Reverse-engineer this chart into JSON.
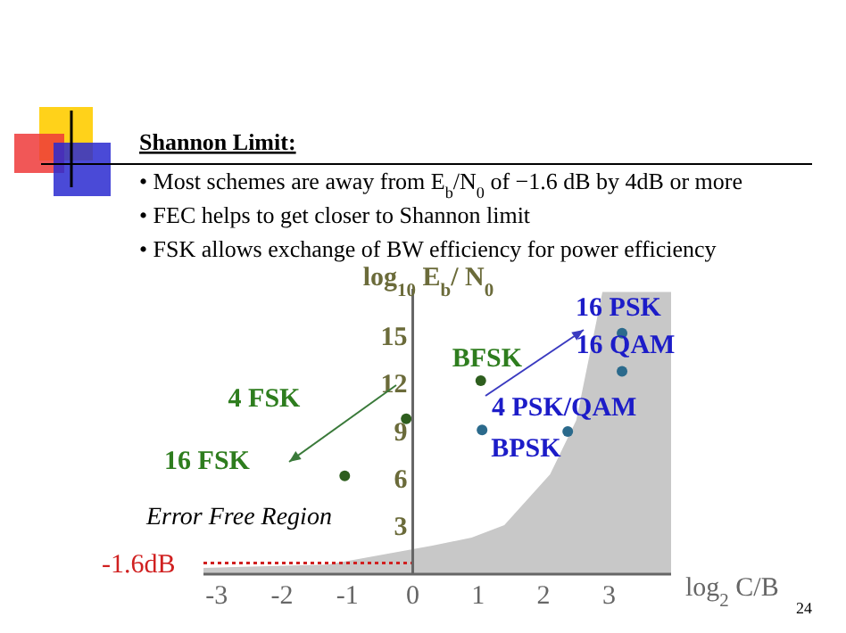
{
  "chart_data": {
    "type": "scatter",
    "title": "Shannon Limit:",
    "xlabel": "log$_{2}$ C/B",
    "ylabel": "log$_{10}$  E$_{b}$/ N$_{0}$",
    "xlim": [
      -3.2,
      3.95
    ],
    "ylim": [
      0,
      18
    ],
    "xticks": [
      -3,
      -2,
      -1,
      0,
      1,
      2,
      3
    ],
    "yticks": [
      3,
      6,
      9,
      12,
      15
    ],
    "series": [
      {
        "type": "area",
        "color": "#c8c8c8",
        "x": [
          -3.2,
          -1.3,
          0.3,
          0.9,
          1.4,
          2.1,
          2.5,
          2.9,
          3.95
        ],
        "values": [
          0.4,
          0.6,
          1.8,
          2.3,
          3.1,
          6.3,
          9.7,
          17.8,
          17.8
        ]
      },
      {
        "color": "#2e5e1e",
        "marker": "circle",
        "x": [
          1.04,
          -0.1,
          -1.04
        ],
        "values": [
          12.2,
          9.8,
          6.2
        ]
      },
      {
        "color": "#2b6a8c",
        "marker": "circle",
        "x": [
          1.06,
          2.37,
          3.2,
          3.2
        ],
        "values": [
          9.1,
          9,
          12.8,
          15.2
        ]
      }
    ],
    "ref_lines": [
      {
        "axis": "y",
        "value": 0.7,
        "label": "-1.6dB",
        "color": "#d02020",
        "line_style": "dotted"
      }
    ],
    "annotations": [
      {
        "text": "BFSK",
        "x": 1.04,
        "y": 12.2
      },
      {
        "text": "BPSK",
        "x": 1.06,
        "y": 9.1
      },
      {
        "text": "4 PSK/QAM",
        "x": 2.37,
        "y": 9
      },
      {
        "text": "16 QAM",
        "x": 3.2,
        "y": 12.8
      },
      {
        "text": "16 PSK",
        "x": 3.2,
        "y": 15.2
      },
      "• Most schemes are away from E$_{b}$/N$_{0}$ of −1.6 dB by 4dB or more",
      "• FEC helps to get closer to Shannon limit",
      "• FSK allows exchange of BW efficiency for power efficiency",
      "Error Free Region",
      "24",
      "4 FSK",
      "16 FSK"
    ]
  }
}
